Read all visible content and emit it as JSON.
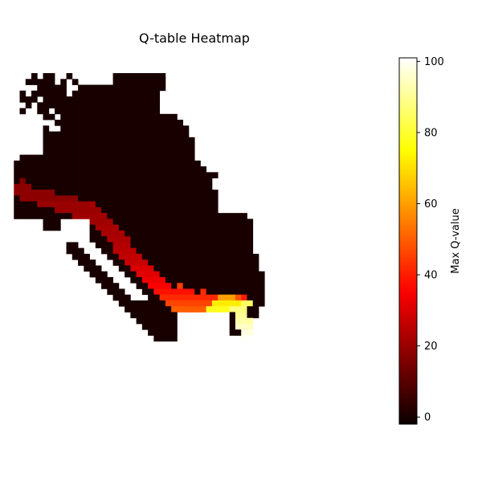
{
  "chart_data": {
    "type": "heatmap",
    "title": "Q-table Heatmap",
    "colormap": "hot",
    "background_color": "#ffffff",
    "grid_resolution": [
      51,
      51
    ],
    "value_range": [
      -2,
      101
    ],
    "colorbar": {
      "label": "Max Q-value",
      "ticks": [
        0,
        20,
        40,
        60,
        80,
        100
      ],
      "tick_labels": [
        "0",
        "20",
        "40",
        "60",
        "80",
        "100"
      ]
    },
    "regions": [
      {
        "name": "visited states",
        "approx_value": 0,
        "rows": [
          {
            "row": 4,
            "cols": [
              [
                4,
                5
              ],
              [
                6,
                8
              ],
              [
                10,
                11
              ],
              [
                18,
                27
              ]
            ]
          },
          {
            "row": 5,
            "cols": [
              [
                3,
                8
              ],
              [
                9,
                10
              ],
              [
                11,
                12
              ],
              [
                18,
                27
              ]
            ]
          },
          {
            "row": 6,
            "cols": [
              [
                5,
                10
              ],
              [
                12,
                27
              ]
            ]
          },
          {
            "row": 7,
            "cols": [
              [
                2,
                3
              ],
              [
                4,
                10
              ],
              [
                11,
                26
              ]
            ]
          },
          {
            "row": 8,
            "cols": [
              [
                2,
                5
              ],
              [
                6,
                26
              ]
            ]
          },
          {
            "row": 9,
            "cols": [
              [
                3,
                4
              ],
              [
                5,
                26
              ]
            ]
          },
          {
            "row": 10,
            "cols": [
              [
                2,
                3
              ],
              [
                5,
                7
              ],
              [
                8,
                26
              ]
            ]
          },
          {
            "row": 11,
            "cols": [
              [
                6,
                8
              ],
              [
                9,
                29
              ]
            ]
          },
          {
            "row": 12,
            "cols": [
              [
                8,
                30
              ]
            ]
          },
          {
            "row": 13,
            "cols": [
              [
                6,
                7
              ],
              [
                9,
                31
              ]
            ]
          },
          {
            "row": 14,
            "cols": [
              [
                6,
                31
              ]
            ]
          },
          {
            "row": 15,
            "cols": [
              [
                6,
                32
              ]
            ]
          },
          {
            "row": 16,
            "cols": [
              [
                6,
                32
              ]
            ]
          },
          {
            "row": 17,
            "cols": [
              [
                6,
                32
              ]
            ]
          },
          {
            "row": 18,
            "cols": [
              [
                2,
                32
              ]
            ]
          },
          {
            "row": 19,
            "cols": [
              [
                1,
                33
              ]
            ]
          },
          {
            "row": 20,
            "cols": [
              [
                1,
                34
              ]
            ]
          },
          {
            "row": 21,
            "cols": [
              [
                1,
                36
              ]
            ]
          },
          {
            "row": 22,
            "cols": [
              [
                1,
                35
              ]
            ]
          },
          {
            "row": 23,
            "cols": [
              [
                1,
                35
              ]
            ]
          },
          {
            "row": 24,
            "cols": [
              [
                1,
                36
              ]
            ]
          },
          {
            "row": 25,
            "cols": [
              [
                1,
                36
              ]
            ]
          },
          {
            "row": 26,
            "cols": [
              [
                1,
                36
              ]
            ]
          },
          {
            "row": 27,
            "cols": [
              [
                1,
                36
              ]
            ]
          },
          {
            "row": 28,
            "cols": [
              [
                1,
                41
              ]
            ]
          },
          {
            "row": 29,
            "cols": [
              [
                6,
                9
              ],
              [
                14,
                42
              ]
            ]
          },
          {
            "row": 30,
            "cols": [
              [
                6,
                9
              ],
              [
                14,
                42
              ]
            ]
          },
          {
            "row": 31,
            "cols": [
              [
                14,
                42
              ]
            ]
          },
          {
            "row": 32,
            "cols": [
              [
                14,
                42
              ]
            ]
          },
          {
            "row": 33,
            "cols": [
              [
                10,
                12
              ],
              [
                15,
                42
              ]
            ]
          },
          {
            "row": 34,
            "cols": [
              [
                10,
                13
              ],
              [
                16,
                42
              ]
            ]
          },
          {
            "row": 35,
            "cols": [
              [
                11,
                14
              ],
              [
                17,
                43
              ]
            ]
          },
          {
            "row": 36,
            "cols": [
              [
                12,
                15
              ],
              [
                18,
                43
              ]
            ]
          },
          {
            "row": 37,
            "cols": [
              [
                13,
                16
              ],
              [
                19,
                43
              ]
            ]
          },
          {
            "row": 38,
            "cols": [
              [
                14,
                17
              ],
              [
                20,
                44
              ]
            ]
          },
          {
            "row": 39,
            "cols": [
              [
                15,
                18
              ],
              [
                21,
                44
              ]
            ]
          },
          {
            "row": 40,
            "cols": [
              [
                16,
                19
              ],
              [
                22,
                44
              ]
            ]
          },
          {
            "row": 41,
            "cols": [
              [
                17,
                20
              ],
              [
                23,
                44
              ]
            ]
          },
          {
            "row": 42,
            "cols": [
              [
                18,
                21
              ],
              [
                24,
                44
              ]
            ]
          },
          {
            "row": 43,
            "cols": [
              [
                19,
                44
              ]
            ]
          },
          {
            "row": 44,
            "cols": [
              [
                20,
                43
              ]
            ]
          },
          {
            "row": 45,
            "cols": [
              [
                21,
                29
              ],
              [
                38,
                43
              ]
            ]
          },
          {
            "row": 46,
            "cols": [
              [
                22,
                29
              ],
              [
                38,
                42
              ]
            ]
          },
          {
            "row": 47,
            "cols": [
              [
                23,
                29
              ],
              [
                38,
                41
              ]
            ]
          },
          {
            "row": 48,
            "cols": [
              [
                24,
                29
              ],
              [
                38,
                40
              ]
            ]
          },
          {
            "row": 49,
            "cols": [
              [
                25,
                29
              ]
            ]
          }
        ]
      },
      {
        "name": "optimal path",
        "segments": [
          {
            "row": 23,
            "cols": [
              [
                1,
                4
              ]
            ],
            "value": 18
          },
          {
            "row": 24,
            "cols": [
              [
                1,
                8
              ]
            ],
            "value": 18
          },
          {
            "row": 25,
            "cols": [
              [
                2,
                12
              ]
            ],
            "value": 18
          },
          {
            "row": 26,
            "cols": [
              [
                5,
                14
              ]
            ],
            "value": 20
          },
          {
            "row": 27,
            "cols": [
              [
                8,
                16
              ]
            ],
            "value": 20
          },
          {
            "row": 28,
            "cols": [
              [
                11,
                17
              ]
            ],
            "value": 21
          },
          {
            "row": 29,
            "cols": [
              [
                14,
                18
              ]
            ],
            "value": 21
          },
          {
            "row": 30,
            "cols": [
              [
                15,
                19
              ]
            ],
            "value": 22
          },
          {
            "row": 31,
            "cols": [
              [
                16,
                20
              ]
            ],
            "value": 22
          },
          {
            "row": 32,
            "cols": [
              [
                17,
                21
              ]
            ],
            "value": 23
          },
          {
            "row": 33,
            "cols": [
              [
                18,
                21
              ]
            ],
            "value": 24
          },
          {
            "row": 34,
            "cols": [
              [
                18,
                22
              ]
            ],
            "value": 25
          },
          {
            "row": 35,
            "cols": [
              [
                19,
                23
              ]
            ],
            "value": 26
          },
          {
            "row": 36,
            "cols": [
              [
                20,
                24
              ]
            ],
            "value": 27
          },
          {
            "row": 37,
            "cols": [
              [
                21,
                25
              ]
            ],
            "value": 30
          },
          {
            "row": 38,
            "cols": [
              [
                22,
                26
              ]
            ],
            "value": 31
          },
          {
            "row": 39,
            "cols": [
              [
                23,
                27
              ]
            ],
            "value": 33
          },
          {
            "row": 40,
            "cols": [
              [
                24,
                28
              ]
            ],
            "value": 35
          },
          {
            "row": 41,
            "cols": [
              [
                25,
                30
              ],
              [
                30,
                32
              ]
            ],
            "value": 38
          },
          {
            "row": 42,
            "cols": [
              [
                26,
                30
              ],
              [
                30,
                34
              ],
              [
                34,
                36
              ]
            ],
            "value": 42
          },
          {
            "row": 42,
            "cols": [
              [
                36,
                38
              ],
              [
                38,
                40
              ]
            ],
            "value": 60
          },
          {
            "row": 43,
            "cols": [
              [
                27,
                31
              ],
              [
                31,
                35
              ]
            ],
            "value": 46
          },
          {
            "row": 43,
            "cols": [
              [
                35,
                38
              ],
              [
                38,
                40
              ]
            ],
            "value": 72
          },
          {
            "row": 43,
            "cols": [
              [
                40,
                42
              ]
            ],
            "value": 85
          },
          {
            "row": 44,
            "cols": [
              [
                28,
                31
              ],
              [
                31,
                34
              ]
            ],
            "value": 50
          },
          {
            "row": 44,
            "cols": [
              [
                34,
                38
              ]
            ],
            "value": 78
          },
          {
            "row": 44,
            "cols": [
              [
                38,
                41
              ]
            ],
            "value": 88
          },
          {
            "row": 45,
            "cols": [
              [
                39,
                41
              ]
            ],
            "value": 90
          },
          {
            "row": 46,
            "cols": [
              [
                39,
                42
              ]
            ],
            "value": 92
          },
          {
            "row": 47,
            "cols": [
              [
                39,
                42
              ]
            ],
            "value": 95
          },
          {
            "row": 48,
            "cols": [
              [
                40,
                42
              ]
            ],
            "value": 98
          },
          {
            "row": 49,
            "cols": [
              [
                40,
                41
              ]
            ],
            "value": 100
          }
        ]
      }
    ],
    "spot_values": [
      {
        "row": 40,
        "col": 29,
        "value": 45
      },
      {
        "row": 41,
        "col": 33,
        "value": 42
      },
      {
        "row": 42,
        "col": 39,
        "value": 48
      },
      {
        "row": 42,
        "col": 40,
        "value": 40
      },
      {
        "row": 22,
        "col": 2,
        "value": 16
      },
      {
        "row": 26,
        "col": 14,
        "value": 22
      }
    ]
  }
}
